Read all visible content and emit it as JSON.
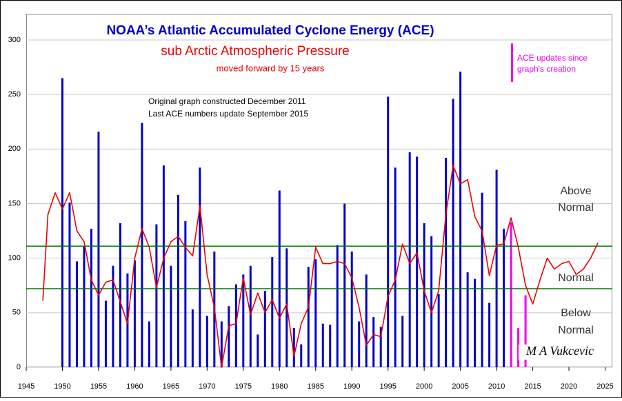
{
  "chart_data": {
    "type": "bar",
    "title": "NOAA’s Atlantic Accumulated Cyclone Energy (ACE)",
    "subtitle": "sub Arctic Atmospheric Pressure",
    "subtitle_note": "moved forward by 15 years",
    "notes": [
      "Original graph constructed December 2011",
      "Last ACE numbers update September 2015"
    ],
    "above_label": [
      "Above",
      "Normal"
    ],
    "normal_label": "Normal",
    "below_label": [
      "Below",
      "Normal"
    ],
    "signature": "M A Vukcevic",
    "xlim": [
      1945,
      2026
    ],
    "xticks": [
      1945,
      1950,
      1955,
      1960,
      1965,
      1970,
      1975,
      1980,
      1985,
      1990,
      1995,
      2000,
      2005,
      2010,
      2015,
      2020,
      2025
    ],
    "ylim": [
      0,
      324
    ],
    "yticks": [
      0,
      50,
      100,
      150,
      200,
      250,
      300
    ],
    "grid": true,
    "bars": {
      "color": "#0000cc",
      "x": [
        1950,
        1951,
        1952,
        1953,
        1954,
        1955,
        1956,
        1957,
        1958,
        1959,
        1960,
        1961,
        1962,
        1963,
        1964,
        1965,
        1966,
        1967,
        1968,
        1969,
        1970,
        1971,
        1972,
        1973,
        1974,
        1975,
        1976,
        1977,
        1978,
        1979,
        1980,
        1981,
        1982,
        1983,
        1984,
        1985,
        1986,
        1987,
        1988,
        1989,
        1990,
        1991,
        1992,
        1993,
        1994,
        1995,
        1996,
        1997,
        1998,
        1999,
        2000,
        2001,
        2002,
        2003,
        2004,
        2005,
        2006,
        2007,
        2008,
        2009,
        2010,
        2011
      ],
      "values": [
        265,
        151,
        97,
        111,
        127,
        216,
        61,
        93,
        132,
        86,
        98,
        224,
        42,
        131,
        185,
        93,
        158,
        134,
        53,
        183,
        47,
        106,
        42,
        56,
        76,
        85,
        93,
        30,
        70,
        101,
        162,
        109,
        36,
        21,
        92,
        99,
        40,
        39,
        112,
        150,
        106,
        42,
        85,
        46,
        37,
        248,
        183,
        47,
        197,
        193,
        132,
        120,
        67,
        192,
        246,
        271,
        87,
        81,
        160,
        59,
        181,
        127
      ]
    },
    "updates": {
      "name": "ACE updates since graph's creation",
      "color": "#ee00ee",
      "x": [
        2012,
        2013,
        2014
      ],
      "values": [
        133,
        36,
        66
      ]
    },
    "pressure_line": {
      "color": "#ee0000",
      "x": [
        1947.3,
        1948,
        1949,
        1950,
        1951,
        1952,
        1953,
        1954,
        1955,
        1956,
        1957,
        1958,
        1959,
        1960,
        1961,
        1962,
        1963,
        1964,
        1965,
        1966,
        1967,
        1968,
        1969,
        1970,
        1971,
        1972,
        1973,
        1974,
        1975,
        1976,
        1977,
        1978,
        1979,
        1980,
        1981,
        1982,
        1983,
        1984,
        1985,
        1986,
        1987,
        1988,
        1989,
        1990,
        1991,
        1992,
        1993,
        1994,
        1995,
        1996,
        1997,
        1998,
        1999,
        2000,
        2001,
        2002,
        2003,
        2004,
        2005,
        2006,
        2007,
        2008,
        2009,
        2010,
        2011,
        2012,
        2013,
        2014,
        2015,
        2016,
        2017,
        2018,
        2019,
        2020,
        2021,
        2022,
        2023,
        2024
      ],
      "values": [
        61,
        140,
        160,
        145,
        160,
        125,
        115,
        80,
        66,
        78,
        80,
        60,
        40,
        100,
        127,
        110,
        73,
        100,
        115,
        120,
        110,
        102,
        148,
        85,
        55,
        0,
        38,
        40,
        82,
        48,
        68,
        50,
        62,
        45,
        58,
        10,
        40,
        55,
        110,
        95,
        95,
        97,
        95,
        82,
        55,
        20,
        30,
        28,
        65,
        80,
        113,
        95,
        105,
        70,
        50,
        70,
        140,
        185,
        168,
        172,
        138,
        125,
        84,
        112,
        113,
        137,
        110,
        75,
        58,
        80,
        100,
        90,
        95,
        97,
        85,
        90,
        100,
        114
      ]
    },
    "reference_lines": [
      {
        "value": 111,
        "color": "#007700"
      },
      {
        "value": 72,
        "color": "#007700"
      }
    ]
  }
}
